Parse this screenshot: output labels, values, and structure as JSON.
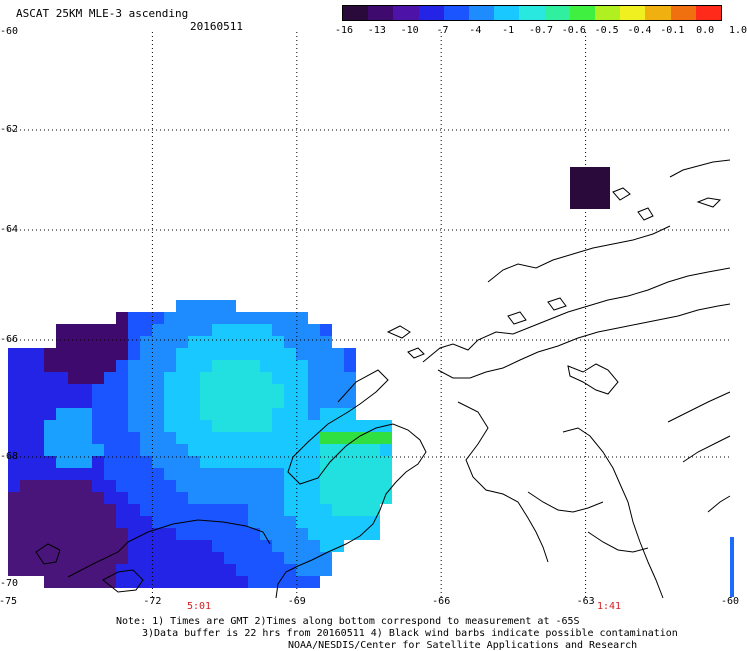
{
  "title": "ASCAT 25KM MLE-3 ascending",
  "date": "20160511",
  "colorbar": {
    "colors": [
      "#2a0a3a",
      "#3f0a6e",
      "#4d12a8",
      "#2424e6",
      "#1a55ff",
      "#1e8cff",
      "#18c8ff",
      "#28e8e0",
      "#30f0a0",
      "#40f040",
      "#b0f020",
      "#f0f020",
      "#f0b010",
      "#f07010",
      "#ff2a1a"
    ],
    "labels": [
      "-16",
      "-13",
      "-10",
      "-7",
      "-4",
      "-1",
      "-0.7",
      "-0.6",
      "-0.5",
      "-0.4",
      "-0.1",
      "0.0",
      "1.0"
    ]
  },
  "axes": {
    "lon_ticks": [
      "-75",
      "-72",
      "-69",
      "-66",
      "-63",
      "-60"
    ],
    "lat_ticks": [
      "-60",
      "-62",
      "-64",
      "-66",
      "-68",
      "-70"
    ]
  },
  "time_labels": [
    "5:01",
    "1:41"
  ],
  "notes": [
    "Note: 1) Times are GMT 2)Times along bottom correspond to measurement at -65S",
    "3)Data buffer is 22 hrs from 20160511 4) Black wind barbs indicate possible contamination",
    "NOAA/NESDIS/Center for Satellite Applications and Research"
  ]
}
